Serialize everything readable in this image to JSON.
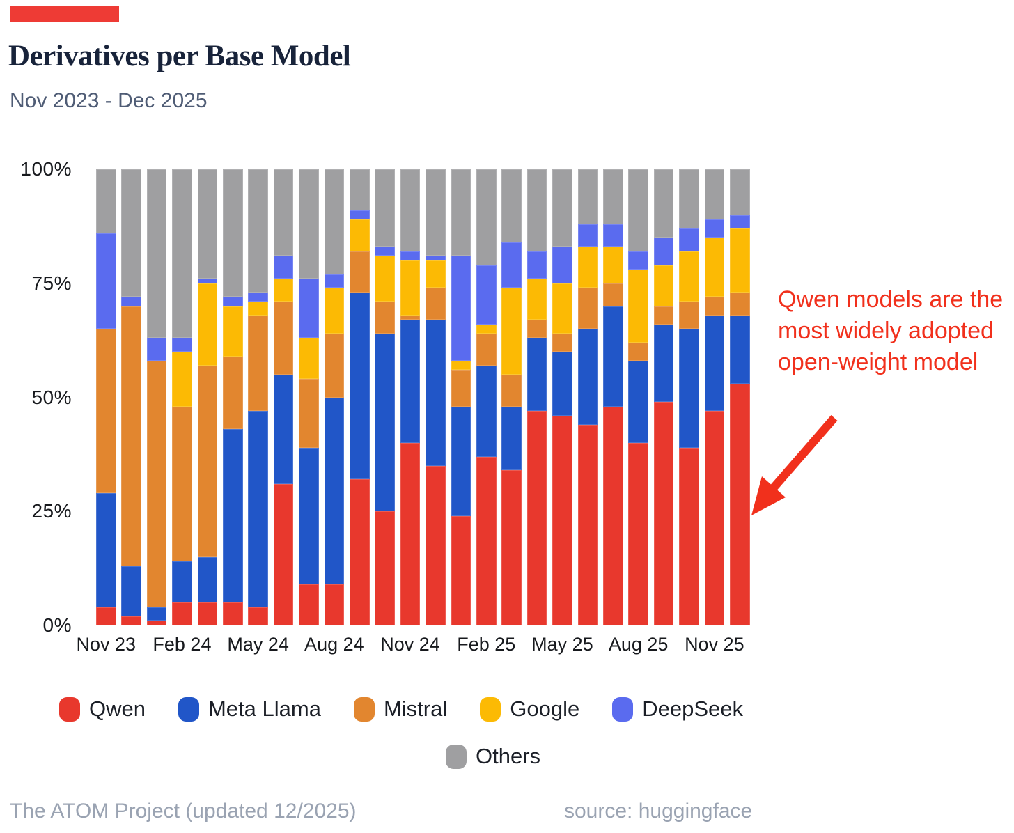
{
  "accent_color": "#ee3b35",
  "header": {
    "title": "Derivatives per Base Model",
    "subtitle": "Nov 2023 - Dec 2025"
  },
  "annotation": {
    "text": "Qwen models are the most widely adopted open-weight model",
    "color": "#f1301c"
  },
  "footer": {
    "left": "The ATOM Project (updated 12/2025)",
    "right": "source: huggingface"
  },
  "chart_data": {
    "type": "bar",
    "stacked": true,
    "unit": "percent of derivatives",
    "title": "Derivatives per Base Model",
    "xlabel": "",
    "ylabel": "",
    "ylim": [
      0,
      100
    ],
    "grid": false,
    "legend_position": "bottom",
    "y_ticks": [
      "0%",
      "25%",
      "50%",
      "75%",
      "100%"
    ],
    "x_tick_labels": [
      "Nov 23",
      "Feb 24",
      "May 24",
      "Aug 24",
      "Nov 24",
      "Feb 25",
      "May 25",
      "Aug 25",
      "Nov 25"
    ],
    "x_tick_every": 3,
    "categories": [
      "Nov 23",
      "Dec 23",
      "Jan 24",
      "Feb 24",
      "Mar 24",
      "Apr 24",
      "May 24",
      "Jun 24",
      "Jul 24",
      "Aug 24",
      "Sep 24",
      "Oct 24",
      "Nov 24",
      "Dec 24",
      "Jan 25",
      "Feb 25",
      "Mar 25",
      "Apr 25",
      "May 25",
      "Jun 25",
      "Jul 25",
      "Aug 25",
      "Sep 25",
      "Oct 25",
      "Nov 25",
      "Dec 25"
    ],
    "series": [
      {
        "name": "Qwen",
        "color": "#e8382d",
        "values": [
          4,
          2,
          1,
          5,
          5,
          5,
          4,
          31,
          9,
          9,
          32,
          25,
          40,
          35,
          24,
          37,
          34,
          47,
          46,
          44,
          48,
          40,
          49,
          39,
          47,
          53
        ]
      },
      {
        "name": "Meta Llama",
        "color": "#2156c8",
        "values": [
          25,
          11,
          3,
          9,
          10,
          38,
          43,
          24,
          30,
          41,
          41,
          39,
          27,
          32,
          24,
          20,
          14,
          16,
          14,
          21,
          22,
          18,
          17,
          26,
          21,
          15
        ]
      },
      {
        "name": "Mistral",
        "color": "#e2862f",
        "values": [
          36,
          57,
          54,
          34,
          42,
          16,
          21,
          16,
          15,
          14,
          9,
          7,
          1,
          7,
          8,
          7,
          7,
          4,
          4,
          9,
          5,
          4,
          4,
          6,
          4,
          5
        ]
      },
      {
        "name": "Google",
        "color": "#fcba04",
        "values": [
          0,
          0,
          0,
          12,
          18,
          11,
          3,
          5,
          9,
          10,
          7,
          10,
          12,
          6,
          2,
          2,
          19,
          9,
          11,
          9,
          8,
          16,
          9,
          11,
          13,
          14
        ]
      },
      {
        "name": "DeepSeek",
        "color": "#5a6bef",
        "values": [
          21,
          2,
          5,
          3,
          1,
          2,
          2,
          5,
          13,
          3,
          2,
          2,
          2,
          1,
          23,
          13,
          10,
          6,
          8,
          5,
          5,
          4,
          6,
          5,
          4,
          3
        ]
      },
      {
        "name": "Others",
        "color": "#9f9fa1",
        "values": [
          14,
          28,
          37,
          37,
          24,
          28,
          27,
          19,
          24,
          23,
          9,
          17,
          18,
          19,
          19,
          21,
          16,
          18,
          17,
          12,
          12,
          18,
          15,
          13,
          11,
          10
        ]
      }
    ]
  }
}
